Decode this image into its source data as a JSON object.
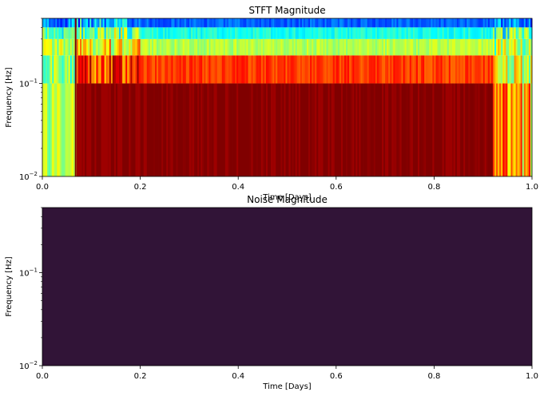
{
  "chart_data": [
    {
      "type": "heatmap",
      "title": "STFT Magnitude",
      "xlabel": "Time [Days]",
      "ylabel": "Frequency [Hz]",
      "xlim": [
        0,
        1
      ],
      "ylim": [
        0.01,
        0.5
      ],
      "yscale": "log",
      "colormap": "jet",
      "x_ticks": [
        {
          "value": 0.0,
          "label": "0.0"
        },
        {
          "value": 0.2,
          "label": "0.2"
        },
        {
          "value": 0.4,
          "label": "0.4"
        },
        {
          "value": 0.6,
          "label": "0.6"
        },
        {
          "value": 0.8,
          "label": "0.8"
        },
        {
          "value": 1.0,
          "label": "1.0"
        }
      ],
      "y_ticks": [
        {
          "value": 0.01,
          "base": "10",
          "exp": "−2"
        },
        {
          "value": 0.1,
          "base": "10",
          "exp": "−1"
        }
      ],
      "freq_bands": [
        0.01,
        0.1,
        0.2,
        0.3,
        0.4,
        0.5
      ],
      "segments": [
        {
          "t0": 0.0,
          "t1": 0.07,
          "band_levels": [
            0.55,
            0.5,
            0.55,
            0.45,
            0.25
          ],
          "variability": 0.12
        },
        {
          "t0": 0.07,
          "t1": 0.2,
          "band_levels": [
            0.95,
            0.8,
            0.65,
            0.5,
            0.3
          ],
          "variability": 0.18
        },
        {
          "t0": 0.2,
          "t1": 0.92,
          "band_levels": [
            1.0,
            0.82,
            0.55,
            0.4,
            0.22
          ],
          "variability": 0.05
        },
        {
          "t0": 0.92,
          "t1": 1.0,
          "band_levels": [
            0.7,
            0.62,
            0.55,
            0.45,
            0.25
          ],
          "variability": 0.18
        }
      ],
      "spike": {
        "t": 0.068,
        "level": 1.0
      }
    },
    {
      "type": "heatmap",
      "title": "Noise Magnitude",
      "xlabel": "Time [Days]",
      "ylabel": "Frequency [Hz]",
      "xlim": [
        0,
        1
      ],
      "ylim": [
        0.01,
        0.5
      ],
      "yscale": "log",
      "colormap": "viridis",
      "uniform_value": 0.0,
      "fill_color": "#311437",
      "x_ticks": [
        {
          "value": 0.0,
          "label": "0.0"
        },
        {
          "value": 0.2,
          "label": "0.2"
        },
        {
          "value": 0.4,
          "label": "0.4"
        },
        {
          "value": 0.6,
          "label": "0.6"
        },
        {
          "value": 0.8,
          "label": "0.8"
        },
        {
          "value": 1.0,
          "label": "1.0"
        }
      ],
      "y_ticks": [
        {
          "value": 0.01,
          "base": "10",
          "exp": "−2"
        },
        {
          "value": 0.1,
          "base": "10",
          "exp": "−1"
        }
      ]
    }
  ]
}
